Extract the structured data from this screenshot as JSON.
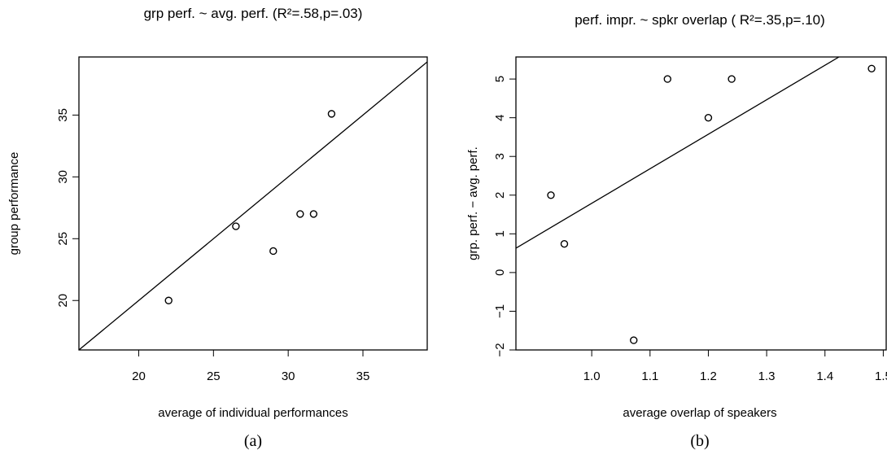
{
  "chart_data": [
    {
      "type": "scatter",
      "title": "grp perf. ~ avg. perf. (R²=.58,p=.03)",
      "x_label": "average of individual performances",
      "y_label": "group performance",
      "caption": "(a)",
      "x": [
        22,
        26.5,
        29,
        30.8,
        31.7,
        32.9
      ],
      "values": [
        20,
        26,
        24,
        27,
        27,
        35.1
      ],
      "color": "#000000",
      "fit": {
        "x": [
          16,
          39.5
        ],
        "y": [
          16,
          39.5
        ]
      },
      "xlim": [
        16,
        39.3
      ],
      "ylim": [
        16,
        39.7
      ],
      "xticks": [
        20,
        25,
        30,
        35
      ],
      "yticks": [
        20,
        25,
        30,
        35
      ]
    },
    {
      "type": "scatter",
      "title": "perf. impr. ~ spkr overlap ( R²=.35,p=.10)",
      "x_label": "average overlap of speakers",
      "y_label": "grp. perf. − avg. perf.",
      "caption": "(b)",
      "x": [
        0.93,
        0.953,
        1.072,
        1.13,
        1.2,
        1.24,
        1.48
      ],
      "values": [
        2,
        0.74,
        -1.75,
        5,
        4,
        5,
        5.27
      ],
      "color": "#000000",
      "fit": {
        "x": [
          0.87,
          1.424
        ],
        "y": [
          0.63,
          5.57
        ]
      },
      "xlim": [
        0.87,
        1.505
      ],
      "ylim": [
        -2,
        5.57
      ],
      "xticks": [
        {
          "value": 1.0,
          "label": "1.0"
        },
        1.1,
        1.2,
        1.3,
        1.4,
        1.5
      ],
      "yticks": [
        {
          "value": -2,
          "label": "−2"
        },
        {
          "value": -1,
          "label": "−1"
        },
        0,
        1,
        2,
        3,
        4,
        5
      ]
    }
  ]
}
